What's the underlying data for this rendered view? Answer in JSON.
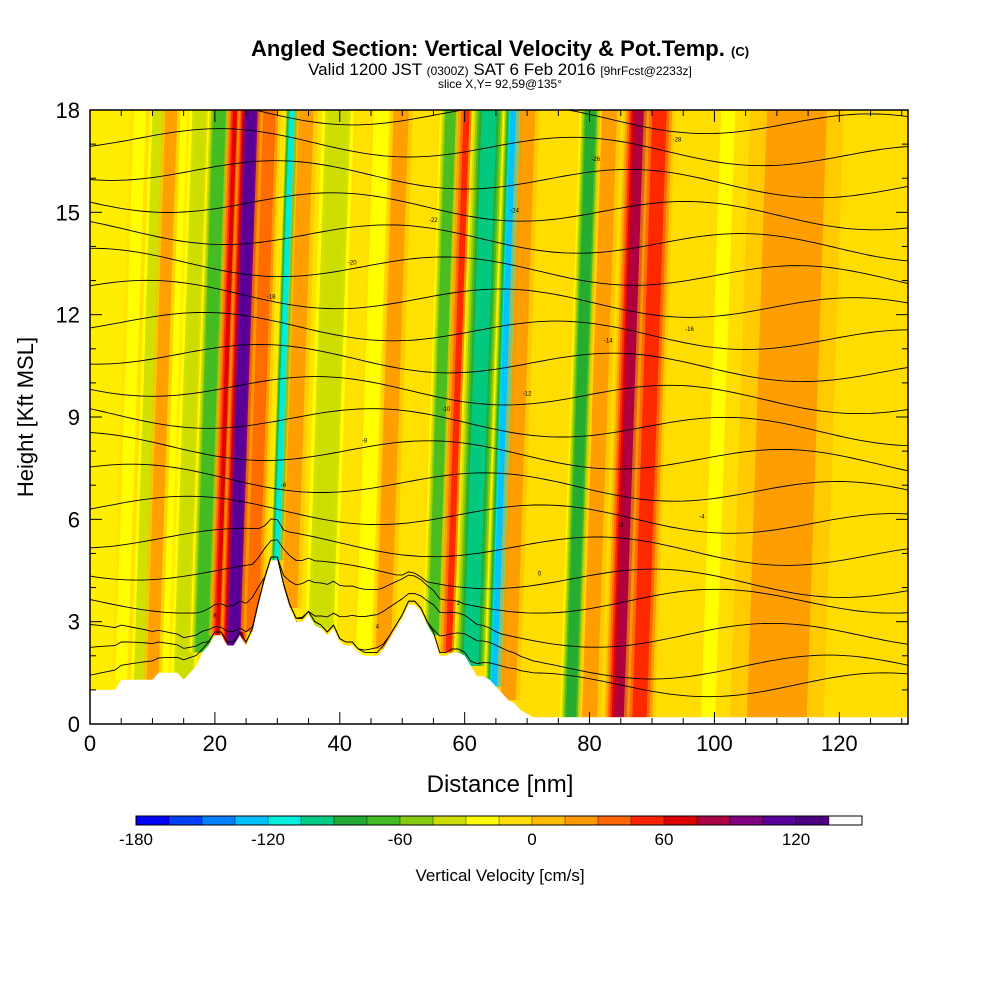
{
  "title": {
    "main": "Angled Section: Vertical Velocity & Pot.Temp.",
    "unit": "(C)",
    "valid_prefix": "Valid 1200 JST",
    "valid_zulu": "(0300Z)",
    "valid_date": "SAT 6 Feb 2016",
    "forecast": "[9hrFcst@2233z]",
    "slice": "slice X,Y= 92,59@135°"
  },
  "chart_data": {
    "type": "heatmap",
    "xlabel": "Distance [nm]",
    "ylabel": "Height [Kft MSL]",
    "xlim": [
      0,
      131
    ],
    "ylim": [
      0,
      18
    ],
    "x_ticks": [
      0,
      20,
      40,
      60,
      80,
      100,
      120
    ],
    "y_ticks": [
      0,
      3,
      6,
      9,
      12,
      15,
      18
    ],
    "grid": false,
    "colorbar": {
      "label": "Vertical Velocity [cm/s]",
      "min": -180,
      "max": 150,
      "step": 15,
      "tick_labels": [
        "-180",
        "-120",
        "-60",
        "0",
        "60",
        "120"
      ],
      "colors": [
        "#0000ff",
        "#0040ff",
        "#0080ff",
        "#00c0ff",
        "#00eedd",
        "#00cc88",
        "#22aa33",
        "#44bb22",
        "#88cc11",
        "#ccdd00",
        "#ffff00",
        "#ffdd00",
        "#ffbb00",
        "#ff9900",
        "#ff6600",
        "#ff2200",
        "#dd0000",
        "#aa0044",
        "#800080",
        "#550099",
        "#4b0082",
        "#ffffff"
      ]
    },
    "velocity_features": [
      {
        "x": 5,
        "w": 1.2,
        "value": -25
      },
      {
        "x": 8,
        "w": 1.5,
        "value": -40
      },
      {
        "x": 10,
        "w": 1.2,
        "value": 20
      },
      {
        "x": 13,
        "w": 1.5,
        "value": -30
      },
      {
        "x": 15,
        "w": 2.0,
        "value": -45
      },
      {
        "x": 18,
        "w": 1.8,
        "value": -75
      },
      {
        "x": 21,
        "w": 1.6,
        "value": 60
      },
      {
        "x": 23,
        "w": 1.8,
        "value": 105
      },
      {
        "x": 26,
        "w": 1.5,
        "value": 35
      },
      {
        "x": 30,
        "w": 1.0,
        "value": -110
      },
      {
        "x": 32,
        "w": 1.5,
        "value": 25
      },
      {
        "x": 37,
        "w": 2.5,
        "value": -45
      },
      {
        "x": 44,
        "w": 1.5,
        "value": -30
      },
      {
        "x": 47,
        "w": 1.5,
        "value": 20
      },
      {
        "x": 55,
        "w": 1.6,
        "value": -70
      },
      {
        "x": 58,
        "w": 1.8,
        "value": 50
      },
      {
        "x": 61,
        "w": 2.5,
        "value": -95
      },
      {
        "x": 65,
        "w": 1.6,
        "value": -125
      },
      {
        "x": 67,
        "w": 1.5,
        "value": 20
      },
      {
        "x": 77,
        "w": 1.6,
        "value": -80
      },
      {
        "x": 80,
        "w": 1.5,
        "value": 15
      },
      {
        "x": 85,
        "w": 2.2,
        "value": 85
      },
      {
        "x": 88,
        "w": 2.0,
        "value": 55
      },
      {
        "x": 99,
        "w": 1.2,
        "value": -30
      },
      {
        "x": 110,
        "w": 6.0,
        "value": 20
      }
    ],
    "terrain_kft": [
      [
        0,
        1.0
      ],
      [
        4,
        1.0
      ],
      [
        5,
        1.3
      ],
      [
        10,
        1.3
      ],
      [
        11,
        1.5
      ],
      [
        14,
        1.5
      ],
      [
        15,
        1.3
      ],
      [
        17,
        1.7
      ],
      [
        18,
        2.1
      ],
      [
        19,
        2.3
      ],
      [
        20,
        2.6
      ],
      [
        21,
        2.6
      ],
      [
        22,
        2.3
      ],
      [
        23,
        2.3
      ],
      [
        24,
        2.6
      ],
      [
        25,
        2.3
      ],
      [
        26,
        2.7
      ],
      [
        27,
        3.5
      ],
      [
        28,
        4.2
      ],
      [
        29,
        4.8
      ],
      [
        30,
        4.8
      ],
      [
        31,
        4.0
      ],
      [
        32,
        3.4
      ],
      [
        33,
        3.0
      ],
      [
        34,
        3.0
      ],
      [
        35,
        3.2
      ],
      [
        36,
        2.9
      ],
      [
        37,
        2.8
      ],
      [
        38,
        2.6
      ],
      [
        39,
        2.8
      ],
      [
        40,
        2.4
      ],
      [
        41,
        2.3
      ],
      [
        42,
        2.3
      ],
      [
        43,
        2.1
      ],
      [
        44,
        2.0
      ],
      [
        45,
        2.0
      ],
      [
        46,
        2.0
      ],
      [
        47,
        2.2
      ],
      [
        48,
        2.5
      ],
      [
        49,
        2.8
      ],
      [
        50,
        3.1
      ],
      [
        51,
        3.5
      ],
      [
        52,
        3.5
      ],
      [
        53,
        3.3
      ],
      [
        54,
        2.9
      ],
      [
        55,
        2.6
      ],
      [
        56,
        2.0
      ],
      [
        57,
        2.0
      ],
      [
        58,
        2.1
      ],
      [
        59,
        2.1
      ],
      [
        60,
        2.0
      ],
      [
        61,
        1.7
      ],
      [
        62,
        1.4
      ],
      [
        63,
        1.4
      ],
      [
        64,
        1.3
      ],
      [
        65,
        1.1
      ],
      [
        66,
        0.9
      ],
      [
        67,
        0.7
      ],
      [
        68,
        0.6
      ],
      [
        69,
        0.4
      ],
      [
        70,
        0.3
      ],
      [
        71,
        0.2
      ],
      [
        72,
        0.2
      ],
      [
        131,
        0.2
      ]
    ],
    "isentropes_c": [
      {
        "base_kft": 0.8,
        "label": "8"
      },
      {
        "base_kft": 1.6,
        "label": "6"
      },
      {
        "base_kft": 2.6,
        "label": "4"
      },
      {
        "base_kft": 3.6,
        "label": "2"
      },
      {
        "base_kft": 4.6,
        "label": "0"
      },
      {
        "base_kft": 5.5,
        "label": "-2"
      },
      {
        "base_kft": 6.4,
        "label": "-4"
      },
      {
        "base_kft": 7.3,
        "label": "-6"
      },
      {
        "base_kft": 8.2,
        "label": "-8"
      },
      {
        "base_kft": 9.1,
        "label": "-10"
      },
      {
        "base_kft": 10.0,
        "label": "-12"
      },
      {
        "base_kft": 10.9,
        "label": "-14"
      },
      {
        "base_kft": 11.8,
        "label": "-16"
      },
      {
        "base_kft": 12.7,
        "label": "-18"
      },
      {
        "base_kft": 13.6,
        "label": "-20"
      },
      {
        "base_kft": 14.5,
        "label": "-22"
      },
      {
        "base_kft": 15.4,
        "label": "-24"
      },
      {
        "base_kft": 16.3,
        "label": "-26"
      },
      {
        "base_kft": 17.2,
        "label": "-28"
      },
      {
        "base_kft": 18.1,
        "label": "-30"
      }
    ]
  }
}
